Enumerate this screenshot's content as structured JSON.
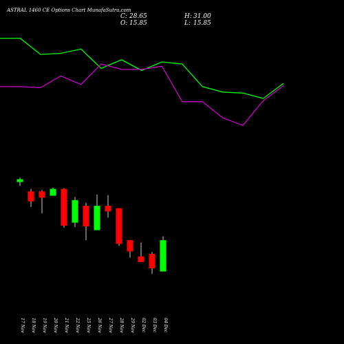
{
  "chart_data": {
    "type": "candlestick",
    "title": "ASTRAL 1460 CE Options Chart MunafaSutra.com",
    "ohlc": {
      "close_label": "C:",
      "close": "28.65",
      "high_label": "H:",
      "high": "31.00",
      "open_label": "O:",
      "open": "15.85",
      "low_label": "L:",
      "low": "15.85"
    },
    "colors": {
      "up": "#00ff00",
      "down": "#ff0000",
      "wick": "#ffffff",
      "line_upper": "#00ff00",
      "line_lower": "#cc00cc",
      "background": "#000000"
    },
    "categories": [
      "17 Nov",
      "18 Nov",
      "19 Nov",
      "20 Nov",
      "21 Nov",
      "22 Nov",
      "25 Nov",
      "26 Nov",
      "27 Nov",
      "28 Nov",
      "29 Nov",
      "02 Dec",
      "03 Dec",
      "04 Dec"
    ],
    "candles": [
      {
        "date": "17 Nov",
        "open": 93.0,
        "high": 100.0,
        "low": 87.0,
        "close": 97.5
      },
      {
        "date": "18 Nov",
        "open": 78.0,
        "high": 82.0,
        "low": 53.0,
        "close": 62.0
      },
      {
        "date": "19 Nov",
        "open": 78.0,
        "high": 80.0,
        "low": 43.0,
        "close": 68.0
      },
      {
        "date": "20 Nov",
        "open": 71.0,
        "high": 84.0,
        "low": 71.0,
        "close": 82.0
      },
      {
        "date": "21 Nov",
        "open": 82.0,
        "high": 83.0,
        "low": 20.0,
        "close": 23.0
      },
      {
        "date": "22 Nov",
        "open": 28.0,
        "high": 69.0,
        "low": 21.0,
        "close": 64.0
      },
      {
        "date": "25 Nov",
        "open": 55.0,
        "high": 60.0,
        "low": 0.0,
        "close": 22.0
      },
      {
        "date": "26 Nov",
        "open": 16.0,
        "high": 73.0,
        "low": 16.0,
        "close": 55.0
      },
      {
        "date": "27 Nov",
        "open": 55.0,
        "high": 72.0,
        "low": 36.0,
        "close": 46.0
      },
      {
        "date": "28 Nov",
        "open": 51.0,
        "high": 51.0,
        "low": -9.0,
        "close": -6.0
      },
      {
        "date": "29 Nov",
        "open": 0.0,
        "high": 0.0,
        "low": -28.0,
        "close": -18.0
      },
      {
        "date": "02 Dec",
        "open": -26.0,
        "high": -4.0,
        "low": -35.0,
        "close": -35.0
      },
      {
        "date": "03 Dec",
        "open": -22.0,
        "high": -19.0,
        "low": -54.0,
        "close": -45.0
      },
      {
        "date": "04 Dec",
        "open": -50.0,
        "high": 6.0,
        "low": -50.0,
        "close": 0.0
      }
    ],
    "candle_ylim": [
      -100,
      120
    ],
    "line_x": [
      0,
      1,
      2,
      3,
      4,
      5,
      6,
      7,
      8,
      9,
      10,
      11,
      12,
      13,
      14
    ],
    "line_upper": [
      100,
      100,
      85,
      86,
      90,
      72,
      80,
      70,
      78,
      76,
      55,
      50,
      49,
      44,
      58
    ],
    "line_lower": [
      55,
      55,
      54,
      65,
      57,
      76,
      71,
      71,
      74,
      41,
      41,
      26,
      19,
      42,
      56
    ],
    "line_ylim": [
      -50,
      110
    ],
    "grid": false,
    "legend": "none"
  }
}
